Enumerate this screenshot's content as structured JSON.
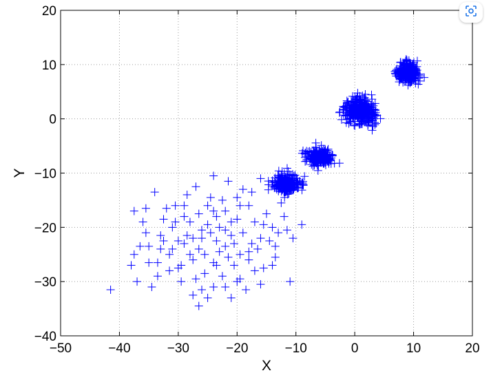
{
  "lens_icon": "lens-scan-icon",
  "colors": {
    "marker": "#0000ff",
    "axis": "#000000",
    "grid": "#9a9a9a",
    "lens_icon": "#1a73e8"
  },
  "chart_data": {
    "type": "scatter",
    "title": "",
    "xlabel": "X",
    "ylabel": "Y",
    "xlim": [
      -50,
      20
    ],
    "ylim": [
      -40,
      20
    ],
    "xticks": [
      -50,
      -40,
      -30,
      -20,
      -10,
      0,
      10,
      20
    ],
    "yticks": [
      -40,
      -30,
      -20,
      -10,
      0,
      10,
      20
    ],
    "xtick_labels": [
      "−50",
      "−40",
      "−30",
      "−20",
      "−10",
      "0",
      "10",
      "20"
    ],
    "ytick_labels": [
      "−40",
      "−30",
      "−20",
      "−10",
      "0",
      "10",
      "20"
    ],
    "grid": true,
    "marker": "+",
    "points": [
      [
        -41.5,
        -31.5
      ],
      [
        -37.0,
        -30.0
      ],
      [
        -38.0,
        -27.0
      ],
      [
        -36.5,
        -23.5
      ],
      [
        -35.5,
        -16.5
      ],
      [
        -37.5,
        -17.0
      ],
      [
        -34.0,
        -13.5
      ],
      [
        -33.0,
        -21.5
      ],
      [
        -32.5,
        -18.5
      ],
      [
        -31.5,
        -25.0
      ],
      [
        -30.0,
        -27.5
      ],
      [
        -29.0,
        -23.0
      ],
      [
        -28.5,
        -14.0
      ],
      [
        -27.0,
        -12.5
      ],
      [
        -26.0,
        -22.0
      ],
      [
        -25.0,
        -16.0
      ],
      [
        -24.0,
        -10.5
      ],
      [
        -23.5,
        -18.0
      ],
      [
        -22.0,
        -20.5
      ],
      [
        -21.5,
        -11.5
      ],
      [
        -20.0,
        -14.5
      ],
      [
        -19.5,
        -25.0
      ],
      [
        -18.0,
        -16.0
      ],
      [
        -17.5,
        -13.5
      ],
      [
        -16.0,
        -22.0
      ],
      [
        -15.5,
        -27.5
      ],
      [
        -14.0,
        -20.0
      ],
      [
        -13.5,
        -25.5
      ],
      [
        -12.0,
        -18.0
      ],
      [
        -11.0,
        -30.0
      ],
      [
        -9.0,
        -19.5
      ],
      [
        -26.5,
        -34.5
      ],
      [
        -24.0,
        -31.0
      ],
      [
        -21.0,
        -33.0
      ],
      [
        -22.5,
        -29.0
      ],
      [
        -18.5,
        -31.5
      ],
      [
        -16.0,
        -30.5
      ],
      [
        -29.5,
        -30.0
      ],
      [
        -33.5,
        -29.0
      ],
      [
        -35.0,
        -26.5
      ],
      [
        -31.0,
        -20.0
      ],
      [
        -27.5,
        -26.0
      ],
      [
        -25.5,
        -28.5
      ],
      [
        -23.0,
        -24.5
      ],
      [
        -20.5,
        -27.0
      ],
      [
        -19.0,
        -21.0
      ],
      [
        -17.0,
        -19.0
      ],
      [
        -15.0,
        -17.5
      ],
      [
        -28.0,
        -19.0
      ],
      [
        -30.5,
        -16.0
      ],
      [
        -26.5,
        -17.5
      ],
      [
        -24.5,
        -21.0
      ],
      [
        -22.0,
        -23.5
      ],
      [
        -20.0,
        -18.5
      ],
      [
        -33.0,
        -24.0
      ],
      [
        -35.5,
        -21.0
      ],
      [
        -29.0,
        -18.0
      ],
      [
        -27.5,
        -22.0
      ],
      [
        -25.5,
        -25.0
      ],
      [
        -23.5,
        -27.0
      ],
      [
        -21.5,
        -25.5
      ],
      [
        -18.0,
        -26.0
      ],
      [
        -16.5,
        -24.0
      ],
      [
        -14.5,
        -22.5
      ],
      [
        -13.0,
        -21.0
      ],
      [
        -31.5,
        -28.0
      ],
      [
        -34.5,
        -31.0
      ],
      [
        -26.0,
        -31.5
      ],
      [
        -22.0,
        -17.0
      ],
      [
        -19.5,
        -16.0
      ],
      [
        -25.0,
        -19.5
      ],
      [
        -30.0,
        -22.5
      ],
      [
        -28.0,
        -25.0
      ],
      [
        -32.0,
        -16.5
      ],
      [
        -36.0,
        -19.0
      ],
      [
        -24.5,
        -14.5
      ],
      [
        -21.0,
        -21.5
      ],
      [
        -17.5,
        -23.0
      ],
      [
        -15.5,
        -19.5
      ],
      [
        -29.5,
        -27.0
      ],
      [
        -27.0,
        -29.5
      ],
      [
        -23.0,
        -20.0
      ],
      [
        -20.5,
        -23.0
      ],
      [
        -12.5,
        -15.5
      ],
      [
        -13.5,
        -23.5
      ],
      [
        -10.5,
        -22.0
      ],
      [
        -11.5,
        -20.5
      ],
      [
        -16.0,
        -11.0
      ],
      [
        -19.0,
        -13.0
      ],
      [
        -22.5,
        -15.0
      ],
      [
        -26.0,
        -20.5
      ],
      [
        -28.5,
        -21.5
      ],
      [
        -31.0,
        -24.0
      ],
      [
        -33.5,
        -26.5
      ],
      [
        -24.0,
        -26.5
      ],
      [
        -19.5,
        -29.5
      ],
      [
        -17.0,
        -28.0
      ],
      [
        -14.0,
        -27.0
      ],
      [
        -30.5,
        -19.0
      ],
      [
        -35.0,
        -23.5
      ],
      [
        -37.5,
        -25.0
      ],
      [
        -32.5,
        -22.5
      ],
      [
        -22.0,
        -31.0
      ],
      [
        -25.0,
        -33.0
      ],
      [
        -27.5,
        -32.5
      ],
      [
        -20.0,
        -30.0
      ],
      [
        -18.0,
        -24.5
      ],
      [
        -26.5,
        -24.0
      ],
      [
        -23.5,
        -22.5
      ],
      [
        -29.0,
        -16.0
      ],
      [
        -21.0,
        -19.0
      ],
      [
        -24.0,
        -17.0
      ]
    ],
    "clusters": [
      {
        "cx": 9,
        "cy": 8.5,
        "sx": 1.7,
        "sy": 1.5,
        "n": 260
      },
      {
        "cx": 1,
        "cy": 1.5,
        "sx": 2.2,
        "sy": 1.9,
        "n": 380
      },
      {
        "cx": -6,
        "cy": -7,
        "sx": 1.8,
        "sy": 1.4,
        "n": 230
      },
      {
        "cx": -11.5,
        "cy": -12,
        "sx": 2.0,
        "sy": 1.5,
        "n": 240
      }
    ]
  }
}
